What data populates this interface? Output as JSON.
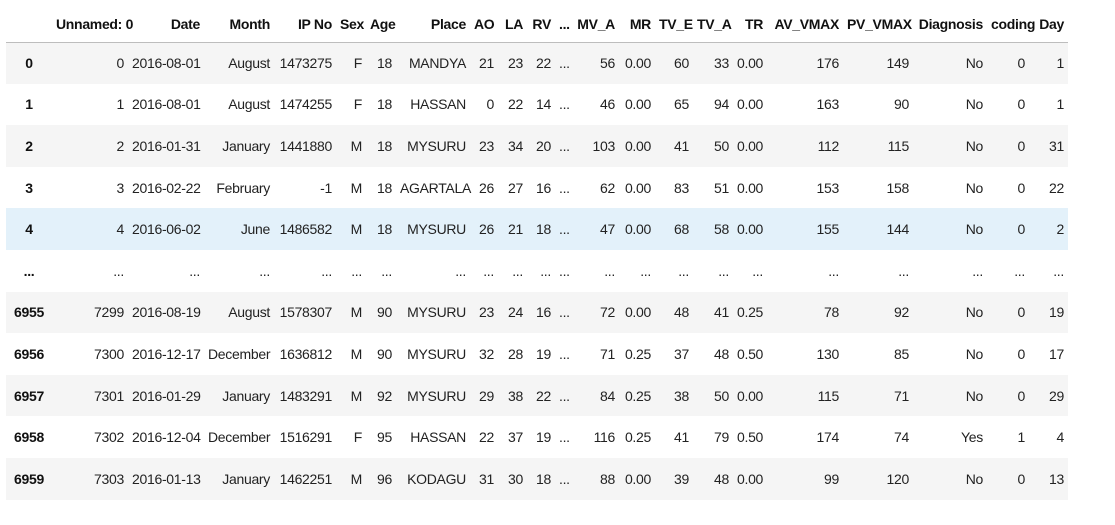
{
  "columns": [
    "",
    "Unnamed: 0",
    "Date",
    "Month",
    "IP No",
    "Sex",
    "Age",
    "Place",
    "AO",
    "LA",
    "RV",
    "...",
    "MV_A",
    "MR",
    "TV_E",
    "TV_A",
    "TR",
    "AV_VMAX",
    "PV_VMAX",
    "Diagnosis",
    "coding",
    "Day"
  ],
  "rows": [
    {
      "index": "0",
      "cells": [
        "0",
        "2016-08-01",
        "August",
        "1473275",
        "F",
        "18",
        "MANDYA",
        "21",
        "23",
        "22",
        "...",
        "56",
        "0.00",
        "60",
        "33",
        "0.00",
        "176",
        "149",
        "No",
        "0",
        "1"
      ]
    },
    {
      "index": "1",
      "cells": [
        "1",
        "2016-08-01",
        "August",
        "1474255",
        "F",
        "18",
        "HASSAN",
        "0",
        "22",
        "14",
        "...",
        "46",
        "0.00",
        "65",
        "94",
        "0.00",
        "163",
        "90",
        "No",
        "0",
        "1"
      ]
    },
    {
      "index": "2",
      "cells": [
        "2",
        "2016-01-31",
        "January",
        "1441880",
        "M",
        "18",
        "MYSURU",
        "23",
        "34",
        "20",
        "...",
        "103",
        "0.00",
        "41",
        "50",
        "0.00",
        "112",
        "115",
        "No",
        "0",
        "31"
      ]
    },
    {
      "index": "3",
      "cells": [
        "3",
        "2016-02-22",
        "February",
        "-1",
        "M",
        "18",
        "AGARTALA",
        "26",
        "27",
        "16",
        "...",
        "62",
        "0.00",
        "83",
        "51",
        "0.00",
        "153",
        "158",
        "No",
        "0",
        "22"
      ]
    },
    {
      "index": "4",
      "cells": [
        "4",
        "2016-06-02",
        "June",
        "1486582",
        "M",
        "18",
        "MYSURU",
        "26",
        "21",
        "18",
        "...",
        "47",
        "0.00",
        "68",
        "58",
        "0.00",
        "155",
        "144",
        "No",
        "0",
        "2"
      ]
    },
    {
      "index": "...",
      "cells": [
        "...",
        "...",
        "...",
        "...",
        "...",
        "...",
        "...",
        "...",
        "...",
        "...",
        "...",
        "...",
        "...",
        "...",
        "...",
        "...",
        "...",
        "...",
        "...",
        "...",
        "..."
      ]
    },
    {
      "index": "6955",
      "cells": [
        "7299",
        "2016-08-19",
        "August",
        "1578307",
        "M",
        "90",
        "MYSURU",
        "23",
        "24",
        "16",
        "...",
        "72",
        "0.00",
        "48",
        "41",
        "0.25",
        "78",
        "92",
        "No",
        "0",
        "19"
      ]
    },
    {
      "index": "6956",
      "cells": [
        "7300",
        "2016-12-17",
        "December",
        "1636812",
        "M",
        "90",
        "MYSURU",
        "32",
        "28",
        "19",
        "...",
        "71",
        "0.25",
        "37",
        "48",
        "0.50",
        "130",
        "85",
        "No",
        "0",
        "17"
      ]
    },
    {
      "index": "6957",
      "cells": [
        "7301",
        "2016-01-29",
        "January",
        "1483291",
        "M",
        "92",
        "MYSURU",
        "29",
        "38",
        "22",
        "...",
        "84",
        "0.25",
        "38",
        "50",
        "0.00",
        "115",
        "71",
        "No",
        "0",
        "29"
      ]
    },
    {
      "index": "6958",
      "cells": [
        "7302",
        "2016-12-04",
        "December",
        "1516291",
        "F",
        "95",
        "HASSAN",
        "22",
        "37",
        "19",
        "...",
        "116",
        "0.25",
        "41",
        "79",
        "0.50",
        "174",
        "74",
        "Yes",
        "1",
        "4"
      ]
    },
    {
      "index": "6959",
      "cells": [
        "7303",
        "2016-01-13",
        "January",
        "1462251",
        "M",
        "96",
        "KODAGU",
        "31",
        "30",
        "18",
        "...",
        "88",
        "0.00",
        "39",
        "48",
        "0.00",
        "99",
        "120",
        "No",
        "0",
        "13"
      ]
    }
  ]
}
